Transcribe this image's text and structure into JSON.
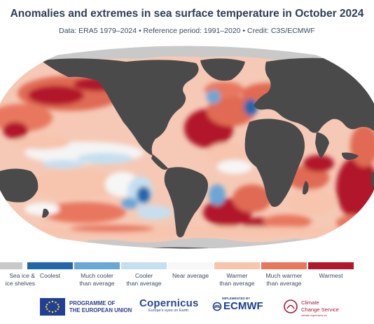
{
  "title": "Anomalies and extremes in sea surface temperature in October 2024",
  "subtitle": "Data: ERA5 1979–2024 • Reference period: 1991–2020 • Credit: C3S/ECMWF",
  "colors": {
    "land": "#4a4a4a",
    "sea_ice": "#c9c9c9",
    "coolest": "#2166ac",
    "much_cooler": "#6aa6d6",
    "cooler": "#c6dff0",
    "near_average": "#f7f7f7",
    "warmer": "#f7c4ad",
    "much_warmer": "#e9775e",
    "warmest": "#b2182b"
  },
  "legend": [
    {
      "line1": "Sea ice &",
      "line2": "ice shelves",
      "color": "#c9c9c9"
    },
    {
      "line1": "Coolest",
      "line2": "",
      "color": "#2166ac"
    },
    {
      "line1": "Much cooler",
      "line2": "than average",
      "color": "#6aa6d6"
    },
    {
      "line1": "Cooler",
      "line2": "than average",
      "color": "#c6dff0"
    },
    {
      "line1": "Near average",
      "line2": "",
      "color": "#f7f7f7"
    },
    {
      "line1": "Warmer",
      "line2": "than average",
      "color": "#f7c4ad"
    },
    {
      "line1": "Much warmer",
      "line2": "than average",
      "color": "#e9775e"
    },
    {
      "line1": "Warmest",
      "line2": "",
      "color": "#b2182b"
    }
  ],
  "logos": {
    "eu_line1": "PROGRAMME OF",
    "eu_line2": "THE EUROPEAN UNION",
    "copernicus": "Copernicus",
    "copernicus_tagline": "Europe's eyes on Earth",
    "ecmwf_implemented": "IMPLEMENTED BY",
    "ecmwf": "ECMWF",
    "ccs_line1": "Climate",
    "ccs_line2": "Change Service",
    "ccs_tagline": "climate.copernicus.eu"
  }
}
